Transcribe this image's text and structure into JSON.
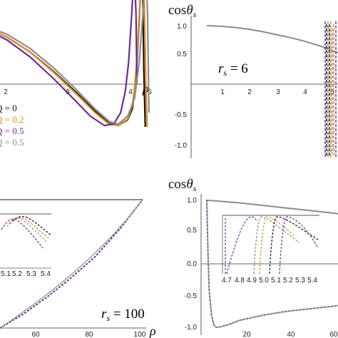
{
  "colors": {
    "q0": "#111111",
    "q02": "#e08a1e",
    "q05": "#6a2d91",
    "q05g": "#8c8c8c",
    "axis": "#333333",
    "inset": "#555555"
  },
  "chart_data": [
    {
      "panel": "top-left",
      "type": "line",
      "xlabel": "ρ",
      "xticks": [
        "2",
        "3",
        "4",
        "5"
      ],
      "legend": [
        "Q = 0",
        "Q = 0.2",
        "Q = 0.5",
        "Q = 0.5"
      ],
      "legend_placement": "left",
      "series": [
        {
          "name": "Q = 0",
          "x": [
            0.6,
            1.0,
            1.5,
            2.0,
            2.5,
            3.0,
            3.5,
            3.9,
            4.2,
            4.4,
            4.6,
            4.7,
            4.75,
            4.8,
            4.85,
            4.88,
            4.9,
            4.93,
            4.95,
            4.98
          ],
          "y": [
            0.9,
            0.87,
            0.8,
            0.66,
            0.45,
            0.18,
            -0.12,
            -0.38,
            -0.55,
            -0.58,
            -0.5,
            -0.35,
            -0.1,
            0.3,
            0.9,
            1.3,
            1.5,
            1.2,
            0.2,
            -0.6
          ]
        },
        {
          "name": "Q = 0.2",
          "x": [
            0.6,
            1.0,
            1.5,
            2.0,
            2.5,
            3.0,
            3.5,
            3.9,
            4.2,
            4.4,
            4.6,
            4.7,
            4.75,
            4.8,
            4.85,
            4.9,
            4.93,
            4.96,
            4.99,
            5.02
          ],
          "y": [
            0.9,
            0.87,
            0.8,
            0.66,
            0.45,
            0.17,
            -0.14,
            -0.4,
            -0.56,
            -0.58,
            -0.49,
            -0.3,
            -0.05,
            0.35,
            0.95,
            1.4,
            1.5,
            1.1,
            0.1,
            -0.6
          ]
        },
        {
          "name": "Q = 0.5",
          "x": [
            0.6,
            1.0,
            1.5,
            2.0,
            2.5,
            3.0,
            3.5,
            3.8,
            4.1,
            4.3,
            4.45,
            4.55,
            4.62,
            4.68,
            4.72,
            4.75,
            4.78,
            4.8
          ],
          "y": [
            0.92,
            0.88,
            0.78,
            0.62,
            0.38,
            0.08,
            -0.25,
            -0.45,
            -0.58,
            -0.56,
            -0.4,
            -0.1,
            0.3,
            0.9,
            1.35,
            1.5,
            1.0,
            0.0
          ]
        },
        {
          "name": "Q = 0.5",
          "x": [
            0.6,
            1.0,
            1.5,
            2.0,
            2.5,
            3.0,
            3.5,
            3.9,
            4.2,
            4.4,
            4.6,
            4.75,
            4.85,
            4.92,
            4.97,
            5.0,
            5.03,
            5.06
          ],
          "y": [
            0.92,
            0.88,
            0.82,
            0.7,
            0.5,
            0.23,
            -0.08,
            -0.35,
            -0.52,
            -0.56,
            -0.45,
            -0.2,
            0.3,
            0.9,
            1.4,
            1.5,
            1.0,
            -0.4
          ]
        }
      ]
    },
    {
      "panel": "top-right",
      "type": "line",
      "title": "cosθs",
      "label": "rs = 6",
      "xticks": [
        "1",
        "2",
        "3",
        "4",
        "5"
      ],
      "yticks": [
        "1.0",
        "0.5",
        "-0.5",
        "-1.0"
      ],
      "ylim": [
        -1.0,
        1.0
      ],
      "series": [
        {
          "x": [
            0.5,
            1.0,
            1.5,
            2.0,
            2.5,
            3.0,
            3.5,
            4.0,
            4.5,
            4.8,
            5.0,
            5.2
          ],
          "y": [
            1.0,
            0.99,
            0.97,
            0.94,
            0.9,
            0.85,
            0.8,
            0.74,
            0.67,
            0.62,
            0.58,
            0.55
          ]
        }
      ]
    },
    {
      "panel": "bottom-left",
      "type": "line",
      "xlabel": "ρ",
      "label": "rs = 100",
      "xticks": [
        "60",
        "80",
        "100"
      ],
      "inset_xticks": [
        "5.1",
        "5.2",
        "5.3",
        "5.4"
      ],
      "series": [
        {
          "x": [
            40,
            50,
            60,
            70,
            80,
            90,
            100
          ],
          "y": [
            0.75,
            0.6,
            0.42,
            0.22,
            0.0,
            -0.28,
            -0.6
          ]
        }
      ]
    },
    {
      "panel": "bottom-right",
      "type": "line",
      "title": "cosθs",
      "xticks": [
        "20",
        "40",
        "60"
      ],
      "yticks": [
        "1.0",
        "0.5",
        "0.0",
        "-0.5",
        "-1.0"
      ],
      "inset_xticks": [
        "4.7",
        "4.8",
        "4.9",
        "5.0",
        "5.1",
        "5.2",
        "5.3",
        "5.4"
      ],
      "ylim": [
        -1.0,
        1.0
      ],
      "series": [
        {
          "x": [
            6,
            10,
            20,
            30,
            40,
            50,
            60,
            62
          ],
          "y": [
            0.99,
            0.98,
            0.95,
            0.91,
            0.87,
            0.83,
            0.79,
            0.78
          ]
        },
        {
          "x": [
            6,
            6.5,
            7,
            8,
            9,
            10,
            12,
            15,
            20,
            30,
            40,
            50,
            60,
            62
          ],
          "y": [
            1.0,
            0.2,
            -0.4,
            -0.8,
            -0.95,
            -0.99,
            -0.98,
            -0.95,
            -0.88,
            -0.8,
            -0.74,
            -0.7,
            -0.66,
            -0.65
          ]
        }
      ]
    }
  ]
}
